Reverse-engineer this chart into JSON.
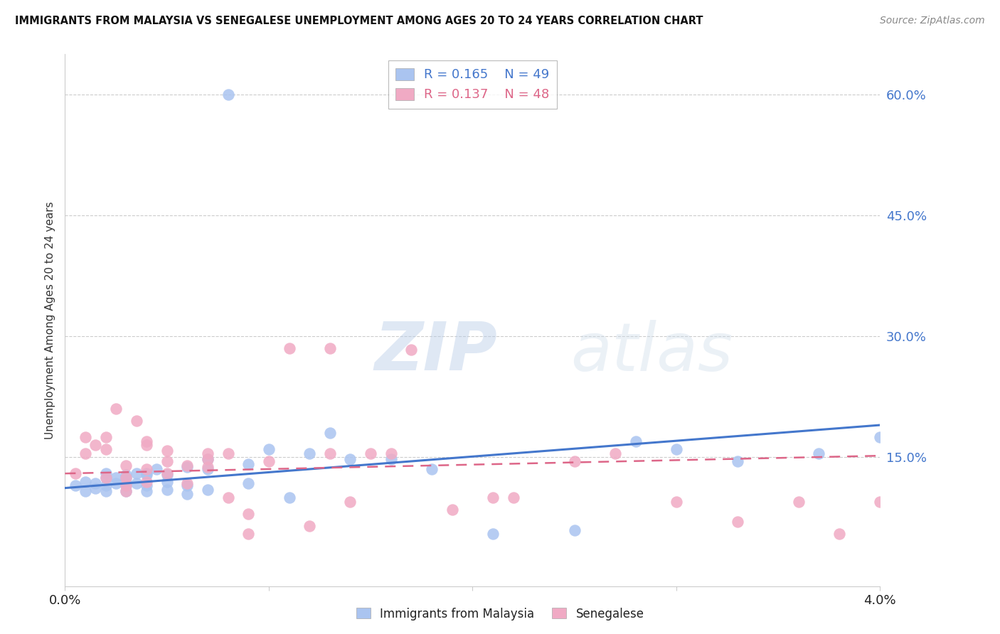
{
  "title": "IMMIGRANTS FROM MALAYSIA VS SENEGALESE UNEMPLOYMENT AMONG AGES 20 TO 24 YEARS CORRELATION CHART",
  "source": "Source: ZipAtlas.com",
  "ylabel": "Unemployment Among Ages 20 to 24 years",
  "yticks": [
    0.0,
    0.15,
    0.3,
    0.45,
    0.6
  ],
  "ytick_labels": [
    "",
    "15.0%",
    "30.0%",
    "45.0%",
    "60.0%"
  ],
  "xmin": 0.0,
  "xmax": 0.04,
  "ymin": -0.01,
  "ymax": 0.65,
  "legend1_r": "0.165",
  "legend1_n": "49",
  "legend2_r": "0.137",
  "legend2_n": "48",
  "blue_color": "#aac4f0",
  "pink_color": "#f0aac4",
  "blue_line_color": "#4477cc",
  "pink_line_color": "#dd6688",
  "watermark_zip": "ZIP",
  "watermark_atlas": "atlas",
  "blue_scatter_x": [
    0.0005,
    0.001,
    0.001,
    0.0015,
    0.0015,
    0.002,
    0.002,
    0.002,
    0.002,
    0.0025,
    0.0025,
    0.003,
    0.003,
    0.003,
    0.003,
    0.003,
    0.0035,
    0.0035,
    0.004,
    0.004,
    0.004,
    0.004,
    0.0045,
    0.005,
    0.005,
    0.005,
    0.006,
    0.006,
    0.006,
    0.007,
    0.007,
    0.007,
    0.008,
    0.009,
    0.009,
    0.01,
    0.011,
    0.012,
    0.013,
    0.014,
    0.016,
    0.018,
    0.021,
    0.025,
    0.028,
    0.03,
    0.033,
    0.037,
    0.04
  ],
  "blue_scatter_y": [
    0.115,
    0.108,
    0.12,
    0.112,
    0.118,
    0.125,
    0.115,
    0.108,
    0.13,
    0.118,
    0.125,
    0.128,
    0.115,
    0.12,
    0.108,
    0.125,
    0.13,
    0.118,
    0.128,
    0.115,
    0.13,
    0.108,
    0.135,
    0.12,
    0.128,
    0.11,
    0.138,
    0.105,
    0.115,
    0.135,
    0.148,
    0.11,
    0.6,
    0.142,
    0.118,
    0.16,
    0.1,
    0.155,
    0.18,
    0.148,
    0.148,
    0.135,
    0.055,
    0.06,
    0.17,
    0.16,
    0.145,
    0.155,
    0.175
  ],
  "pink_scatter_x": [
    0.0005,
    0.001,
    0.001,
    0.0015,
    0.002,
    0.002,
    0.002,
    0.0025,
    0.003,
    0.003,
    0.003,
    0.003,
    0.0035,
    0.004,
    0.004,
    0.004,
    0.004,
    0.005,
    0.005,
    0.005,
    0.006,
    0.006,
    0.007,
    0.007,
    0.007,
    0.008,
    0.008,
    0.009,
    0.009,
    0.01,
    0.011,
    0.012,
    0.013,
    0.013,
    0.014,
    0.015,
    0.016,
    0.017,
    0.019,
    0.021,
    0.022,
    0.025,
    0.027,
    0.03,
    0.033,
    0.036,
    0.038,
    0.04
  ],
  "pink_scatter_y": [
    0.13,
    0.175,
    0.155,
    0.165,
    0.175,
    0.16,
    0.125,
    0.21,
    0.14,
    0.125,
    0.115,
    0.108,
    0.195,
    0.165,
    0.135,
    0.12,
    0.17,
    0.13,
    0.158,
    0.145,
    0.14,
    0.118,
    0.155,
    0.148,
    0.138,
    0.1,
    0.155,
    0.08,
    0.055,
    0.145,
    0.285,
    0.065,
    0.155,
    0.285,
    0.095,
    0.155,
    0.155,
    0.283,
    0.085,
    0.1,
    0.1,
    0.145,
    0.155,
    0.095,
    0.07,
    0.095,
    0.055,
    0.095
  ],
  "blue_trend_x": [
    0.0,
    0.04
  ],
  "blue_trend_y": [
    0.112,
    0.19
  ],
  "pink_trend_x": [
    0.0,
    0.04
  ],
  "pink_trend_y": [
    0.13,
    0.152
  ]
}
